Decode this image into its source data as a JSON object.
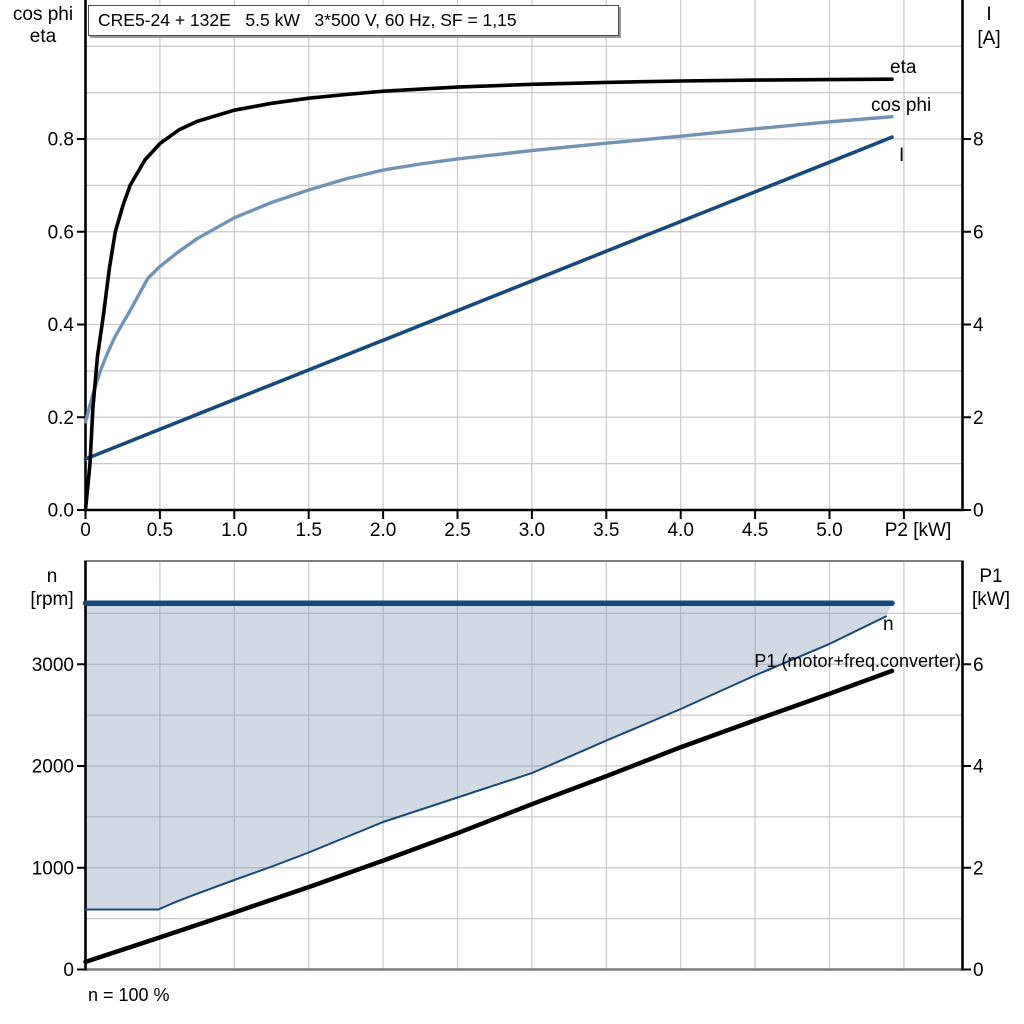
{
  "title_box": {
    "text": "CRE5-24 + 132E   5.5 kW   3*500 V, 60 Hz, SF = 1,15"
  },
  "footnote": "n = 100 %",
  "colors": {
    "black": "#000000",
    "dark_blue": "#17497C",
    "steel_blue": "#7093B6",
    "area_fill_rgb": "113,140,173",
    "area_fill_alpha": 0.33,
    "grid": "#C9C9C9",
    "frame_gray": "#7F7F7F",
    "background": "#FFFFFF"
  },
  "chart_data": [
    {
      "type": "line",
      "title": "CRE5-24 + 132E   5.5 kW   3*500 V, 60 Hz, SF = 1,15",
      "x_axis": {
        "label": "P2 [kW]",
        "range": [
          0,
          5.9
        ],
        "tick_values": [
          0,
          0.5,
          1,
          1.5,
          2,
          2.5,
          3,
          3.5,
          4,
          4.5,
          5,
          5.5
        ],
        "tick_labels": [
          "0",
          "0.5",
          "1.0",
          "1.5",
          "2.0",
          "2.5",
          "3.0",
          "3.5",
          "4.0",
          "4.5",
          "5.0",
          ""
        ],
        "grid_values": [
          0.5,
          1,
          1.5,
          2,
          2.5,
          3,
          3.5,
          4,
          4.5,
          5,
          5.5
        ]
      },
      "left_axis": {
        "labels": [
          "cos phi",
          "eta"
        ],
        "range": [
          0,
          1.1
        ],
        "tick_values": [
          0,
          0.2,
          0.4,
          0.6,
          0.8
        ],
        "tick_labels": [
          "0.0",
          "0.2",
          "0.4",
          "0.6",
          "0.8"
        ],
        "grid_values": [
          0.1,
          0.2,
          0.3,
          0.4,
          0.5,
          0.6,
          0.7,
          0.8,
          0.9,
          1.0
        ]
      },
      "right_axis": {
        "labels": [
          "I",
          "[A]"
        ],
        "range": [
          0,
          11
        ],
        "tick_values": [
          0,
          2,
          4,
          6,
          8
        ],
        "tick_labels": [
          "0",
          "2",
          "4",
          "6",
          "8"
        ]
      },
      "series": [
        {
          "name": "I",
          "label": "I",
          "axis": "right",
          "color_key": "dark_blue",
          "width": 3.6,
          "points": [
            [
              0,
              1.1
            ],
            [
              1,
              2.38
            ],
            [
              2,
              3.66
            ],
            [
              3,
              4.94
            ],
            [
              4,
              6.22
            ],
            [
              5,
              7.5
            ],
            [
              5.42,
              8.04
            ]
          ]
        },
        {
          "name": "cos-phi",
          "label": "cos phi",
          "axis": "left",
          "color_key": "steel_blue",
          "width": 3.4,
          "points": [
            [
              0,
              0.19
            ],
            [
              0.05,
              0.25
            ],
            [
              0.1,
              0.3
            ],
            [
              0.15,
              0.34
            ],
            [
              0.2,
              0.375
            ],
            [
              0.3,
              0.43
            ],
            [
              0.42,
              0.5
            ],
            [
              0.5,
              0.525
            ],
            [
              0.63,
              0.558
            ],
            [
              0.75,
              0.585
            ],
            [
              1,
              0.63
            ],
            [
              1.25,
              0.663
            ],
            [
              1.5,
              0.69
            ],
            [
              1.75,
              0.714
            ],
            [
              2,
              0.733
            ],
            [
              2.25,
              0.746
            ],
            [
              2.5,
              0.757
            ],
            [
              3,
              0.775
            ],
            [
              3.5,
              0.791
            ],
            [
              4,
              0.806
            ],
            [
              4.5,
              0.822
            ],
            [
              5,
              0.837
            ],
            [
              5.42,
              0.848
            ]
          ]
        },
        {
          "name": "eta",
          "label": "eta",
          "axis": "left",
          "color_key": "black",
          "width": 3.6,
          "points": [
            [
              0,
              0
            ],
            [
              0.03,
              0.1
            ],
            [
              0.05,
              0.22
            ],
            [
              0.08,
              0.33
            ],
            [
              0.12,
              0.42
            ],
            [
              0.16,
              0.52
            ],
            [
              0.2,
              0.6
            ],
            [
              0.25,
              0.655
            ],
            [
              0.3,
              0.7
            ],
            [
              0.4,
              0.755
            ],
            [
              0.5,
              0.79
            ],
            [
              0.63,
              0.82
            ],
            [
              0.75,
              0.838
            ],
            [
              1,
              0.862
            ],
            [
              1.25,
              0.877
            ],
            [
              1.5,
              0.888
            ],
            [
              1.75,
              0.896
            ],
            [
              2,
              0.903
            ],
            [
              2.5,
              0.912
            ],
            [
              3,
              0.918
            ],
            [
              3.5,
              0.922
            ],
            [
              4,
              0.925
            ],
            [
              4.5,
              0.927
            ],
            [
              5,
              0.928
            ],
            [
              5.42,
              0.929
            ]
          ]
        }
      ]
    },
    {
      "type": "line-area",
      "x_axis": {
        "label": "",
        "range": [
          0,
          5.9
        ],
        "tick_values": [],
        "tick_labels": [],
        "grid_values": [
          0.5,
          1,
          1.5,
          2,
          2.5,
          3,
          3.5,
          4,
          4.5,
          5,
          5.5
        ]
      },
      "left_axis": {
        "labels": [
          "n",
          "[rpm]"
        ],
        "range": [
          0,
          4012
        ],
        "tick_values": [
          0,
          1000,
          2000,
          3000
        ],
        "tick_labels": [
          "0",
          "1000",
          "2000",
          "3000"
        ],
        "grid_values": [
          500,
          1000,
          1500,
          2000,
          2500,
          3000,
          3500
        ]
      },
      "right_axis": {
        "labels": [
          "P1",
          "[kW]"
        ],
        "range": [
          0,
          8.02
        ],
        "tick_values": [
          0,
          2,
          4,
          6
        ],
        "tick_labels": [
          "0",
          "2",
          "4",
          "6"
        ]
      },
      "series": [
        {
          "name": "n-max",
          "label": "",
          "axis": "left",
          "color_key": "dark_blue",
          "width": 5.5,
          "points": [
            [
              0,
              3600
            ],
            [
              5.42,
              3600
            ]
          ]
        },
        {
          "name": "n",
          "label": "n",
          "axis": "left",
          "color_key": "dark_blue",
          "width": 2,
          "points": [
            [
              0,
              590
            ],
            [
              0.49,
              590
            ],
            [
              0.6,
              660
            ],
            [
              0.75,
              745
            ],
            [
              1,
              880
            ],
            [
              1.25,
              1010
            ],
            [
              1.5,
              1150
            ],
            [
              2,
              1450
            ],
            [
              2.5,
              1690
            ],
            [
              3,
              1930
            ],
            [
              3.5,
              2250
            ],
            [
              4,
              2560
            ],
            [
              4.5,
              2890
            ],
            [
              5,
              3200
            ],
            [
              5.38,
              3470
            ]
          ]
        },
        {
          "name": "P1",
          "label": "P1 (motor+freq.converter)",
          "axis": "right",
          "color_key": "black",
          "width": 4.5,
          "points": [
            [
              0,
              0.15
            ],
            [
              0.5,
              0.63
            ],
            [
              1,
              1.12
            ],
            [
              1.5,
              1.62
            ],
            [
              2,
              2.14
            ],
            [
              2.5,
              2.68
            ],
            [
              3,
              3.25
            ],
            [
              3.5,
              3.8
            ],
            [
              4,
              4.37
            ],
            [
              4.5,
              4.9
            ],
            [
              5,
              5.42
            ],
            [
              5.42,
              5.87
            ]
          ]
        }
      ],
      "area": {
        "upper": "n-max",
        "lower": "n",
        "meaning": "speed control range"
      },
      "footnote": "n = 100 %"
    }
  ]
}
